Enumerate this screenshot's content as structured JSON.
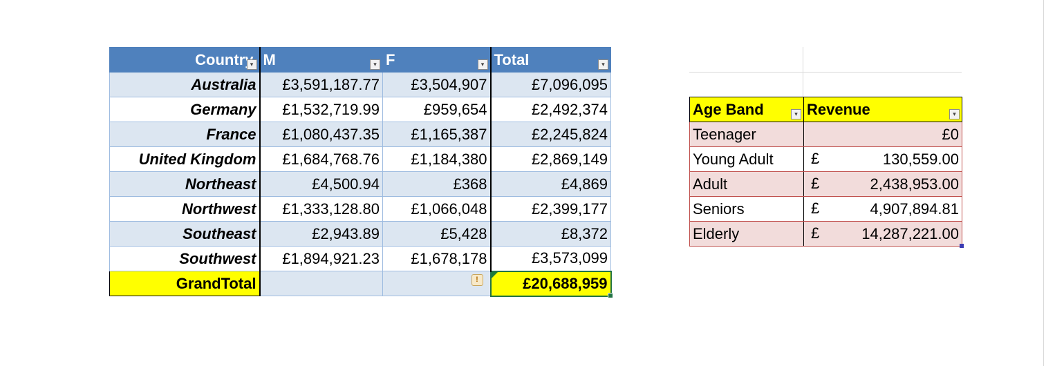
{
  "pivot": {
    "headers": {
      "country": "Country",
      "m": "M",
      "f": "F",
      "total": "Total"
    },
    "rows": [
      {
        "country": "Australia",
        "m": "£3,591,187.77",
        "f": "£3,504,907",
        "total": "£7,096,095"
      },
      {
        "country": "Germany",
        "m": "£1,532,719.99",
        "f": "£959,654",
        "total": "£2,492,374"
      },
      {
        "country": "France",
        "m": "£1,080,437.35",
        "f": "£1,165,387",
        "total": "£2,245,824"
      },
      {
        "country": "United Kingdom",
        "m": "£1,684,768.76",
        "f": "£1,184,380",
        "total": "£2,869,149"
      },
      {
        "country": "Northeast",
        "m": "£4,500.94",
        "f": "£368",
        "total": "£4,869"
      },
      {
        "country": "Northwest",
        "m": "£1,333,128.80",
        "f": "£1,066,048",
        "total": "£2,399,177"
      },
      {
        "country": "Southeast",
        "m": "£2,943.89",
        "f": "£5,428",
        "total": "£8,372"
      },
      {
        "country": "Southwest",
        "m": "£1,894,921.23",
        "f": "£1,678,178",
        "total": "£3,573,099"
      }
    ],
    "grand_total": {
      "label": "GrandTotal",
      "value": "£20,688,959",
      "warning_glyph": "!"
    }
  },
  "age_table": {
    "headers": {
      "band": "Age Band",
      "revenue": "Revenue"
    },
    "currency_symbol": "£",
    "rows": [
      {
        "band": "Teenager",
        "revenue": "£0",
        "show_symbol": false
      },
      {
        "band": "Young Adult",
        "revenue": "130,559.00",
        "show_symbol": true
      },
      {
        "band": "Adult",
        "revenue": "2,438,953.00",
        "show_symbol": true
      },
      {
        "band": "Seniors",
        "revenue": "4,907,894.81",
        "show_symbol": true
      },
      {
        "band": "Elderly",
        "revenue": "14,287,221.00",
        "show_symbol": true
      }
    ]
  },
  "icons": {
    "dropdown": "▾",
    "warning": "warning-icon"
  },
  "colors": {
    "header_blue": "#4f81bd",
    "band_blue": "#dce6f1",
    "highlight_yellow": "#ffff00",
    "band_pink": "#f2dcdb",
    "selection_green": "#217346"
  }
}
